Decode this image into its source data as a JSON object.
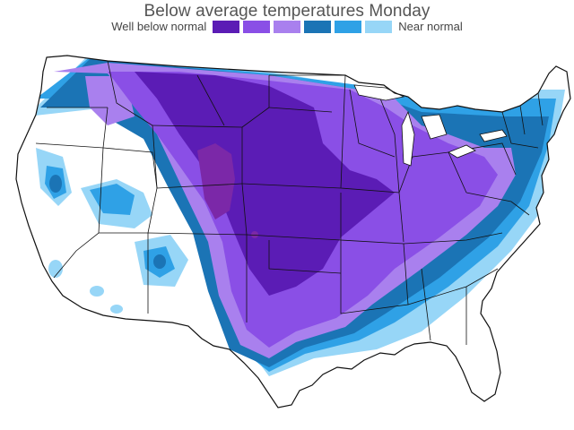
{
  "title": "Below average temperatures Monday",
  "legend": {
    "left_label": "Well below normal",
    "right_label": "Near normal",
    "swatches": [
      {
        "name": "well-below-1",
        "color": "#5b1cb5"
      },
      {
        "name": "well-below-2",
        "color": "#8a4fe6"
      },
      {
        "name": "below-3",
        "color": "#a980ee"
      },
      {
        "name": "below-4",
        "color": "#1b74b5"
      },
      {
        "name": "below-5",
        "color": "#2fa1e6"
      },
      {
        "name": "near-normal-6",
        "color": "#97d6f7"
      }
    ]
  },
  "colors": {
    "land": "#ffffff",
    "border": "#111111",
    "deep": "#7b28a8"
  }
}
